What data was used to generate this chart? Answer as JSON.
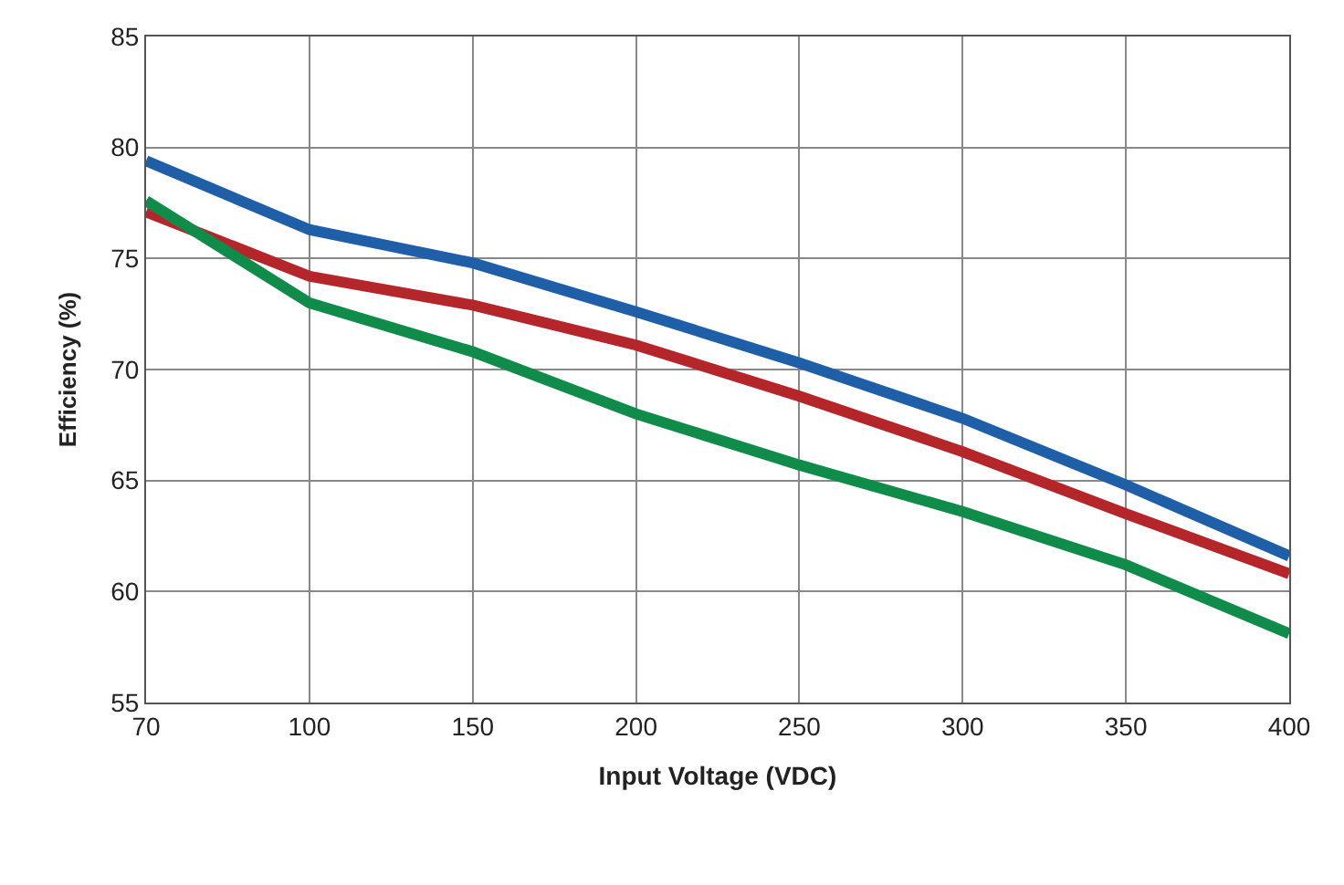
{
  "chart_data": {
    "type": "line",
    "xlabel": "Input Voltage (VDC)",
    "ylabel": "Efficiency (%)",
    "categories": [
      "70",
      "100",
      "150",
      "200",
      "250",
      "300",
      "350",
      "400"
    ],
    "series": [
      {
        "color": "#1f5fa8",
        "values": [
          79.4,
          76.3,
          74.8,
          72.6,
          70.3,
          67.8,
          64.8,
          61.6
        ]
      },
      {
        "color": "#b5262b",
        "values": [
          77.1,
          74.2,
          72.9,
          71.1,
          68.8,
          66.3,
          63.5,
          60.8
        ]
      },
      {
        "color": "#0f8c4a",
        "values": [
          77.6,
          73.0,
          70.8,
          68.0,
          65.7,
          63.6,
          61.2,
          58.1
        ]
      }
    ],
    "ylim": [
      55,
      85
    ],
    "yticks": [
      55,
      60,
      65,
      70,
      75,
      80,
      85
    ],
    "grid": true,
    "marker": "none",
    "line_style": "solid"
  }
}
